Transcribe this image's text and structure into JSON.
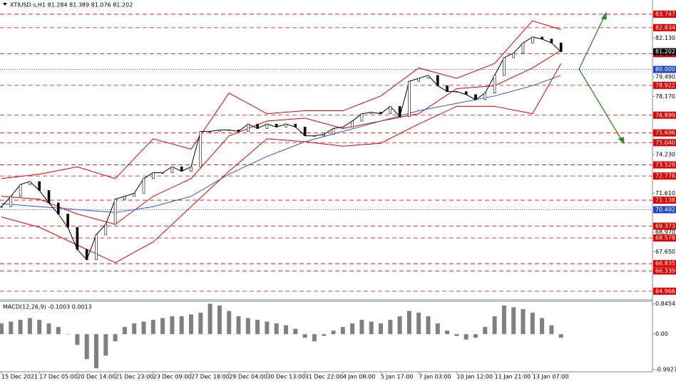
{
  "chart_data": [
    {
      "type": "line",
      "title": "XTIUSD.s,H1  81.284 81.389 81.076 81.202",
      "categories": [
        "15 Dec 2021",
        null,
        null,
        null,
        "17 Dec 05:00",
        null,
        null,
        null,
        "20 Dec 14:00",
        null,
        null,
        null,
        "21 Dec 23:00",
        null,
        null,
        null,
        "23 Dec 09:00",
        null,
        null,
        null,
        "27 Dec 18:00",
        null,
        null,
        null,
        "29 Dec 04:00",
        null,
        null,
        null,
        "30 Dec 13:00",
        null,
        null,
        null,
        "31 Dec 22:00",
        null,
        null,
        null,
        "4 Jan 08:00",
        null,
        null,
        null,
        "5 Jan 17:00",
        null,
        null,
        null,
        "7 Jan 03:00",
        null,
        null,
        null,
        "10 Jan 12:00",
        null,
        null,
        null,
        "11 Jan 21:00",
        null,
        null,
        null,
        "13 Jan 07:00",
        null,
        null,
        null
      ],
      "values": [
        70.7,
        71.4,
        72.2,
        72.4,
        71.8,
        70.95,
        70.2,
        69.3,
        67.8,
        67.1,
        68.8,
        69.5,
        71.2,
        71.4,
        71.6,
        72.6,
        73.0,
        73.0,
        73.4,
        73.1,
        73.4,
        75.8,
        75.8,
        75.9,
        75.9,
        75.8,
        76.3,
        76.0,
        76.3,
        76.1,
        76.3,
        76.1,
        75.5,
        75.5,
        75.6,
        76.0,
        76.1,
        76.5,
        77.0,
        77.1,
        77.0,
        77.5,
        76.8,
        79.2,
        79.4,
        79.6,
        78.9,
        78.5,
        78.5,
        78.3,
        77.95,
        78.4,
        79.6,
        80.8,
        81.1,
        81.8,
        82.2,
        82.06,
        81.8,
        81.202
      ],
      "color": "#000000",
      "overlays": [
        {
          "color": "#e00000",
          "x": [
            0,
            4,
            8,
            12,
            16,
            20,
            24,
            28,
            32,
            36,
            40,
            44,
            48,
            52,
            56,
            59
          ],
          "values": [
            72.6,
            72.9,
            73.4,
            72.6,
            75.3,
            74.6,
            78.4,
            77.0,
            77.2,
            77.2,
            78.2,
            80.1,
            79.4,
            80.4,
            83.3,
            82.7
          ]
        },
        {
          "color": "#e00000",
          "x": [
            0,
            4,
            8,
            12,
            16,
            20,
            24,
            28,
            32,
            36,
            40,
            44,
            48,
            52,
            56,
            59
          ],
          "values": [
            71.4,
            71.2,
            70.2,
            69.5,
            71.4,
            72.6,
            75.5,
            76.5,
            76.7,
            76.0,
            76.5,
            77.0,
            78.7,
            78.9,
            80.1,
            81.3
          ]
        },
        {
          "color": "#e00000",
          "x": [
            0,
            4,
            8,
            12,
            16,
            20,
            24,
            28,
            32,
            36,
            40,
            44,
            48,
            52,
            56,
            59
          ],
          "values": [
            70.0,
            69.3,
            68.1,
            66.9,
            68.3,
            70.7,
            73.1,
            75.3,
            75.1,
            74.8,
            75.0,
            76.3,
            77.5,
            77.5,
            77.0,
            80.4
          ]
        },
        {
          "color": "#3355dd",
          "x": [
            0,
            4,
            8,
            12,
            16,
            20,
            24,
            28,
            32,
            36,
            40,
            44,
            48,
            52,
            56,
            59
          ],
          "values": [
            70.9,
            70.7,
            70.5,
            70.3,
            70.7,
            71.4,
            72.9,
            74.1,
            75.1,
            75.8,
            76.5,
            77.2,
            77.7,
            78.2,
            78.9,
            79.6
          ]
        }
      ],
      "ylim": [
        64.43,
        84.71
      ],
      "yticks": [
        {
          "value": 82.13,
          "label": "82.130"
        },
        {
          "value": 79.49,
          "label": "79.490"
        },
        {
          "value": 78.17,
          "label": "78.170"
        },
        {
          "value": 74.23,
          "label": "74.230"
        },
        {
          "value": 71.61,
          "label": "71.610"
        },
        {
          "value": 68.97,
          "label": "68.970"
        },
        {
          "value": 67.65,
          "label": "67.650"
        }
      ],
      "levels": [
        83.747,
        82.834,
        81.072,
        78.922,
        76.899,
        75.696,
        {
          "value": 75.04,
          "label": "75.040"
        },
        73.529,
        72.776,
        71.138,
        69.373,
        68.578,
        66.835,
        66.339,
        64.966
      ],
      "level_color": "#e00000",
      "blue_levels": [
        {
          "value": 80,
          "label": "80.000"
        },
        70.492
      ],
      "blue_color": "#2244cc",
      "last_price": 81.202
    },
    {
      "type": "bar",
      "title": "MACD(12,26,9) -0.1003 0.0013",
      "values": [
        0.3,
        0.35,
        0.4,
        0.45,
        0.4,
        0.3,
        0.2,
        0.0,
        -0.3,
        -0.7,
        -0.95,
        -0.6,
        -0.2,
        0.2,
        0.3,
        0.35,
        0.4,
        0.45,
        0.5,
        0.5,
        0.55,
        0.6,
        0.85,
        0.8,
        0.65,
        0.5,
        0.45,
        0.4,
        0.35,
        0.3,
        0.25,
        0.15,
        -0.1,
        -0.2,
        -0.05,
        0.1,
        0.2,
        0.3,
        0.4,
        0.35,
        0.3,
        0.4,
        0.5,
        0.65,
        0.6,
        0.5,
        0.3,
        0.1,
        -0.05,
        -0.15,
        -0.1,
        0.2,
        0.5,
        0.8,
        0.75,
        0.7,
        0.6,
        0.45,
        0.25,
        -0.1
      ],
      "color": "#808080",
      "ylim": [
        -1.05,
        0.9
      ],
      "yticks": [
        0.8454,
        {
          "value": 0,
          "label": "0.00"
        },
        -0.9927
      ]
    }
  ]
}
